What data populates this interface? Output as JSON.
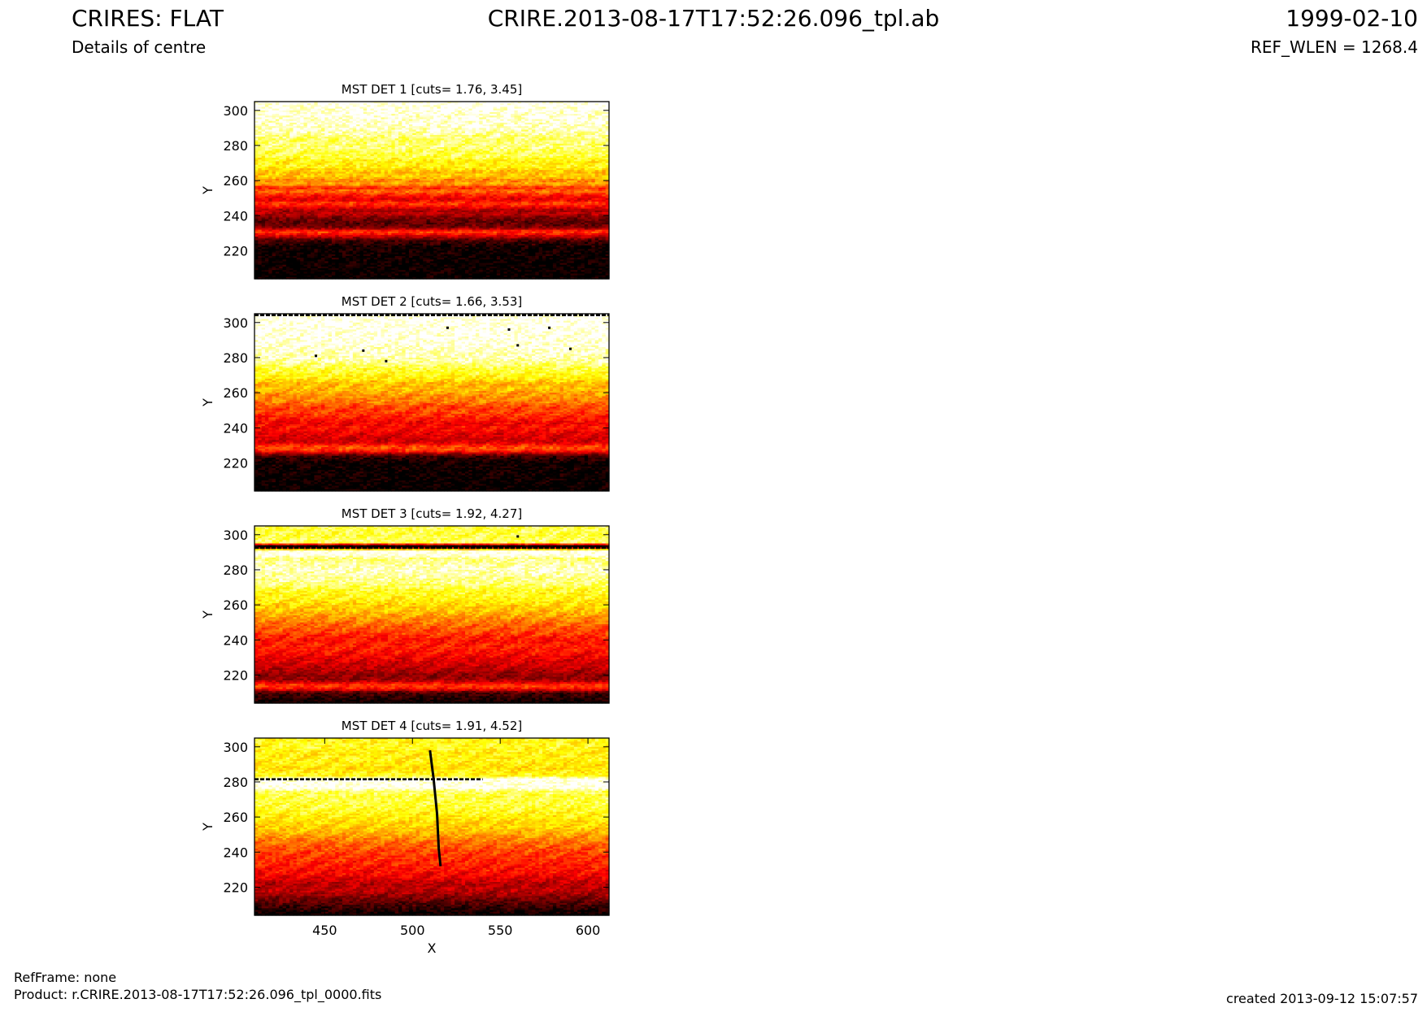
{
  "header": {
    "title": "CRIRES: FLAT",
    "subtitle": "Details of centre",
    "filename": "CRIRE.2013-08-17T17:52:26.096_tpl.ab",
    "date": "1999-02-10",
    "ref_wlen": "REF_WLEN = 1268.4"
  },
  "footer": {
    "refframe": "RefFrame: none",
    "product": "Product: r.CRIRE.2013-08-17T17:52:26.096_tpl_0000.fits",
    "created": "created 2013-09-12 15:07:57"
  },
  "colors": {
    "colormap": [
      "#000000",
      "#800000",
      "#ff0000",
      "#ff8000",
      "#ffff00",
      "#ffffff"
    ]
  },
  "chart_data": [
    {
      "type": "heatmap",
      "title": "MST DET 1 [cuts= 1.76, 3.45]",
      "xlabel": "",
      "ylabel": "Y",
      "xlim": [
        410,
        612
      ],
      "ylim": [
        204,
        305
      ],
      "xticks": [],
      "yticks": [
        220,
        240,
        260,
        280,
        300
      ],
      "cuts": [
        1.76,
        3.45
      ],
      "profile": [
        [
          204,
          0.0
        ],
        [
          222,
          0.02
        ],
        [
          226,
          0.12
        ],
        [
          229,
          0.38
        ],
        [
          231,
          0.5
        ],
        [
          233,
          0.2
        ],
        [
          236,
          0.14
        ],
        [
          239,
          0.2
        ],
        [
          241,
          0.3
        ],
        [
          243,
          0.26
        ],
        [
          245,
          0.4
        ],
        [
          247,
          0.5
        ],
        [
          249,
          0.35
        ],
        [
          252,
          0.45
        ],
        [
          254,
          0.58
        ],
        [
          256,
          0.45
        ],
        [
          258,
          0.68
        ],
        [
          260,
          0.6
        ],
        [
          262,
          0.72
        ],
        [
          265,
          0.7
        ],
        [
          268,
          0.8
        ],
        [
          271,
          0.78
        ],
        [
          274,
          0.87
        ],
        [
          276,
          0.85
        ],
        [
          279,
          0.9
        ],
        [
          283,
          0.88
        ],
        [
          290,
          0.96
        ],
        [
          297,
          0.98
        ],
        [
          305,
          1.0
        ]
      ],
      "bright_lines": [],
      "dark_lines": [],
      "spots": []
    },
    {
      "type": "heatmap",
      "title": "MST DET 2 [cuts= 1.66, 3.53]",
      "xlabel": "",
      "ylabel": "Y",
      "xlim": [
        410,
        612
      ],
      "ylim": [
        204,
        305
      ],
      "xticks": [],
      "yticks": [
        220,
        240,
        260,
        280,
        300
      ],
      "cuts": [
        1.66,
        3.53
      ],
      "profile": [
        [
          204,
          0.0
        ],
        [
          220,
          0.02
        ],
        [
          224,
          0.1
        ],
        [
          227,
          0.48
        ],
        [
          229,
          0.52
        ],
        [
          232,
          0.32
        ],
        [
          236,
          0.35
        ],
        [
          240,
          0.42
        ],
        [
          243,
          0.38
        ],
        [
          246,
          0.45
        ],
        [
          249,
          0.5
        ],
        [
          252,
          0.5
        ],
        [
          255,
          0.6
        ],
        [
          258,
          0.62
        ],
        [
          262,
          0.7
        ],
        [
          265,
          0.68
        ],
        [
          268,
          0.78
        ],
        [
          271,
          0.82
        ],
        [
          274,
          0.85
        ],
        [
          278,
          0.93
        ],
        [
          285,
          0.97
        ],
        [
          295,
          1.0
        ],
        [
          302,
          1.0
        ],
        [
          305,
          1.0
        ]
      ],
      "bright_lines": [],
      "dark_lines": [
        [
          304.2,
          410,
          612
        ]
      ],
      "spots": [
        [
          445,
          281
        ],
        [
          472,
          284
        ],
        [
          485,
          278
        ],
        [
          520,
          297
        ],
        [
          555,
          296
        ],
        [
          560,
          287
        ],
        [
          578,
          297
        ],
        [
          590,
          285
        ]
      ]
    },
    {
      "type": "heatmap",
      "title": "MST DET 3 [cuts= 1.92, 4.27]",
      "xlabel": "",
      "ylabel": "Y",
      "xlim": [
        410,
        612
      ],
      "ylim": [
        204,
        305
      ],
      "xticks": [],
      "yticks": [
        220,
        240,
        260,
        280,
        300
      ],
      "cuts": [
        1.92,
        4.27
      ],
      "profile": [
        [
          204,
          0.0
        ],
        [
          210,
          0.12
        ],
        [
          212,
          0.42
        ],
        [
          214,
          0.5
        ],
        [
          217,
          0.25
        ],
        [
          220,
          0.22
        ],
        [
          224,
          0.3
        ],
        [
          228,
          0.35
        ],
        [
          232,
          0.4
        ],
        [
          236,
          0.45
        ],
        [
          240,
          0.42
        ],
        [
          244,
          0.5
        ],
        [
          248,
          0.55
        ],
        [
          252,
          0.62
        ],
        [
          256,
          0.7
        ],
        [
          260,
          0.74
        ],
        [
          264,
          0.8
        ],
        [
          268,
          0.82
        ],
        [
          272,
          0.9
        ],
        [
          276,
          0.92
        ],
        [
          280,
          0.96
        ],
        [
          284,
          0.92
        ],
        [
          287,
          0.9
        ],
        [
          288,
          1.0
        ],
        [
          291,
          1.0
        ],
        [
          293,
          0.0
        ],
        [
          294,
          0.0
        ],
        [
          295,
          0.88
        ],
        [
          299,
          0.85
        ],
        [
          305,
          0.86
        ]
      ],
      "bright_lines": [],
      "dark_lines": [
        [
          292.5,
          410,
          612
        ]
      ],
      "spots": [
        [
          560,
          299
        ]
      ]
    },
    {
      "type": "heatmap",
      "title": "MST DET 4 [cuts= 1.91, 4.52]",
      "xlabel": "X",
      "ylabel": "Y",
      "xlim": [
        410,
        612
      ],
      "ylim": [
        204,
        305
      ],
      "xticks": [
        450,
        500,
        550,
        600
      ],
      "yticks": [
        220,
        240,
        260,
        280,
        300
      ],
      "cuts": [
        1.91,
        4.52
      ],
      "profile": [
        [
          204,
          0.0
        ],
        [
          212,
          0.15
        ],
        [
          218,
          0.3
        ],
        [
          222,
          0.28
        ],
        [
          226,
          0.38
        ],
        [
          230,
          0.42
        ],
        [
          234,
          0.45
        ],
        [
          240,
          0.5
        ],
        [
          244,
          0.55
        ],
        [
          248,
          0.62
        ],
        [
          252,
          0.7
        ],
        [
          256,
          0.74
        ],
        [
          260,
          0.78
        ],
        [
          264,
          0.82
        ],
        [
          268,
          0.85
        ],
        [
          272,
          0.85
        ],
        [
          275,
          0.88
        ],
        [
          276,
          1.0
        ],
        [
          282,
          1.0
        ],
        [
          283,
          0.82
        ],
        [
          288,
          0.75
        ],
        [
          292,
          0.8
        ],
        [
          296,
          0.78
        ],
        [
          300,
          0.82
        ],
        [
          305,
          0.8
        ]
      ],
      "bright_lines": [],
      "dark_lines": [
        [
          281.5,
          410,
          540
        ]
      ],
      "trace": [
        [
          510,
          298
        ],
        [
          512,
          282
        ],
        [
          514,
          262
        ],
        [
          515,
          242
        ],
        [
          516,
          232
        ]
      ],
      "spots": []
    }
  ]
}
